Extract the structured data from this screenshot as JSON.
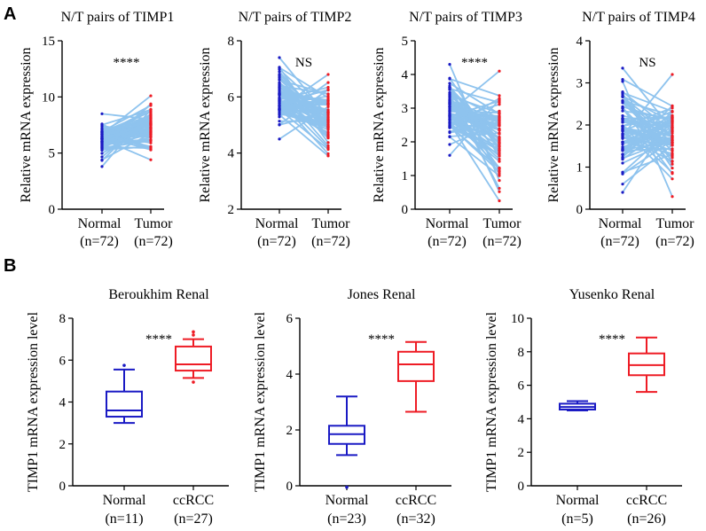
{
  "figure": {
    "panel_a_label": "A",
    "panel_b_label": "B"
  },
  "colors": {
    "normal": "#1a1ac4",
    "tumor": "#ee1c25",
    "pair_line": "#8ec3ee",
    "axis": "#000000"
  },
  "chart_data": [
    {
      "type": "paired-line",
      "title": "N/T pairs of TIMP1",
      "ylabel": "Relative mRNA expression",
      "categories": [
        "Normal",
        "Tumor"
      ],
      "counts": [
        "(n=72)",
        "(n=72)"
      ],
      "ylim": [
        0,
        15
      ],
      "yticks": [
        0,
        5,
        10,
        15
      ],
      "significance": "****",
      "n_pairs": 72,
      "normal_range": [
        3.8,
        8.5
      ],
      "tumor_range": [
        4.4,
        10.1
      ]
    },
    {
      "type": "paired-line",
      "title": "N/T pairs of TIMP2",
      "ylabel": "Relative mRNA expression",
      "categories": [
        "Normal",
        "Tumor"
      ],
      "counts": [
        "(n=72)",
        "(n=72)"
      ],
      "ylim": [
        2,
        8
      ],
      "yticks": [
        2,
        4,
        6,
        8
      ],
      "significance": "NS",
      "n_pairs": 72,
      "normal_range": [
        4.5,
        7.4
      ],
      "tumor_range": [
        3.9,
        6.8
      ]
    },
    {
      "type": "paired-line",
      "title": "N/T pairs of TIMP3",
      "ylabel": "Relative mRNA expression",
      "categories": [
        "Normal",
        "Tumor"
      ],
      "counts": [
        "(n=72)",
        "(n=72)"
      ],
      "ylim": [
        0,
        5
      ],
      "yticks": [
        0,
        1,
        2,
        3,
        4,
        5
      ],
      "significance": "****",
      "n_pairs": 72,
      "normal_range": [
        1.6,
        4.3
      ],
      "tumor_range": [
        0.25,
        4.1
      ]
    },
    {
      "type": "paired-line",
      "title": "N/T pairs of TIMP4",
      "ylabel": "Relative mRNA expression",
      "categories": [
        "Normal",
        "Tumor"
      ],
      "counts": [
        "(n=72)",
        "(n=72)"
      ],
      "ylim": [
        0,
        4
      ],
      "yticks": [
        0,
        1,
        2,
        3,
        4
      ],
      "significance": "NS",
      "n_pairs": 72,
      "normal_range": [
        0.4,
        3.35
      ],
      "tumor_range": [
        0.3,
        3.2
      ]
    },
    {
      "type": "boxplot",
      "title": "Beroukhim Renal",
      "ylabel": "TIMP1 mRNA expression level",
      "categories": [
        "Normal",
        "ccRCC"
      ],
      "counts": [
        "(n=11)",
        "(n=27)"
      ],
      "ylim": [
        0,
        8
      ],
      "yticks": [
        0,
        2,
        4,
        6,
        8
      ],
      "significance": "****",
      "boxes": [
        {
          "min": 3.0,
          "q1": 3.3,
          "median": 3.6,
          "q3": 4.5,
          "max": 5.55,
          "outliers": [
            5.75
          ]
        },
        {
          "min": 5.15,
          "q1": 5.5,
          "median": 5.8,
          "q3": 6.65,
          "max": 7.0,
          "outliers": [
            4.95,
            7.2,
            7.35
          ]
        }
      ]
    },
    {
      "type": "boxplot",
      "title": "Jones Renal",
      "ylabel": "TIMP1 mRNA expression level",
      "categories": [
        "Normal",
        "ccRCC"
      ],
      "counts": [
        "(n=23)",
        "(n=32)"
      ],
      "ylim": [
        0,
        6
      ],
      "yticks": [
        0,
        2,
        4,
        6
      ],
      "significance": "****",
      "boxes": [
        {
          "min": 1.1,
          "q1": 1.5,
          "median": 1.85,
          "q3": 2.15,
          "max": 3.2,
          "outliers": [
            -0.05
          ]
        },
        {
          "min": 2.65,
          "q1": 3.75,
          "median": 4.35,
          "q3": 4.8,
          "max": 5.15,
          "outliers": []
        }
      ]
    },
    {
      "type": "boxplot",
      "title": "Yusenko Renal",
      "ylabel": "TIMP1 mRNA expression level",
      "categories": [
        "Normal",
        "ccRCC"
      ],
      "counts": [
        "(n=5)",
        "(n=26)"
      ],
      "ylim": [
        0,
        10
      ],
      "yticks": [
        0,
        2,
        4,
        6,
        8,
        10
      ],
      "significance": "****",
      "boxes": [
        {
          "min": 4.5,
          "q1": 4.55,
          "median": 4.7,
          "q3": 4.9,
          "max": 5.05,
          "outliers": []
        },
        {
          "min": 5.6,
          "q1": 6.6,
          "median": 7.2,
          "q3": 7.9,
          "max": 8.85,
          "outliers": []
        }
      ]
    }
  ]
}
